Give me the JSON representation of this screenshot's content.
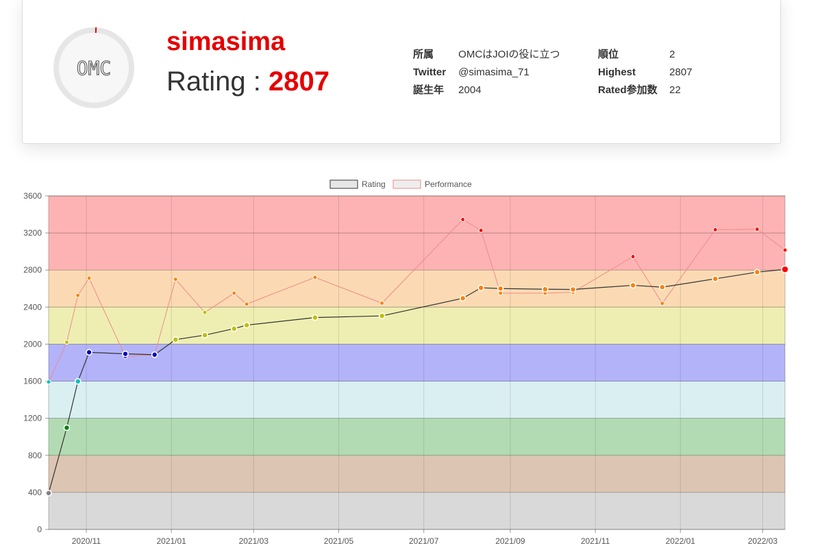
{
  "profile": {
    "avatar_text": "OMC",
    "username": "simasima",
    "rating_label": "Rating :",
    "rating_value": "2807",
    "fields_left": [
      {
        "key": "所属",
        "value": "OMCはJOIの役に立つ",
        "link": false
      },
      {
        "key": "Twitter",
        "value": "@simasima_71",
        "link": true
      },
      {
        "key": "誕生年",
        "value": "2004",
        "link": false
      }
    ],
    "fields_right": [
      {
        "key": "順位",
        "value": "2"
      },
      {
        "key": "Highest",
        "value": "2807"
      },
      {
        "key": "Rated参加数",
        "value": "22"
      }
    ]
  },
  "colors": {
    "accent": "#e50000",
    "link": "#2a9fd6",
    "rating_line": "#333333",
    "performance_line": "#f08a8a"
  },
  "chart_data": {
    "type": "line",
    "legend": [
      "Rating",
      "Performance"
    ],
    "legend_position": "top-center",
    "grid": true,
    "ylim": [
      0,
      3600
    ],
    "yticks": [
      0,
      400,
      800,
      1200,
      1600,
      2000,
      2400,
      2800,
      3200,
      3600
    ],
    "xlim": [
      "2020-10-05",
      "2022-03-17"
    ],
    "xticks": [
      "2020/11",
      "2021/01",
      "2021/03",
      "2021/05",
      "2021/07",
      "2021/09",
      "2021/11",
      "2022/01",
      "2022/03"
    ],
    "bands": [
      {
        "from": 0,
        "to": 400,
        "color": "#d9d9d9"
      },
      {
        "from": 400,
        "to": 800,
        "color": "#dcc5b3"
      },
      {
        "from": 800,
        "to": 1200,
        "color": "#b3dbb3"
      },
      {
        "from": 1200,
        "to": 1600,
        "color": "#daeff2"
      },
      {
        "from": 1600,
        "to": 2000,
        "color": "#b3b3fa"
      },
      {
        "from": 2000,
        "to": 2400,
        "color": "#eeeeb2"
      },
      {
        "from": 2400,
        "to": 2800,
        "color": "#fbdab3"
      },
      {
        "from": 2800,
        "to": 3600,
        "color": "#fdb3b3"
      }
    ],
    "series": [
      {
        "name": "Rating",
        "x": [
          "2020-10-05",
          "2020-10-18",
          "2020-10-26",
          "2020-11-03",
          "2020-11-29",
          "2020-12-20",
          "2021-01-04",
          "2021-01-25",
          "2021-02-15",
          "2021-02-24",
          "2021-04-14",
          "2021-06-01",
          "2021-07-29",
          "2021-08-11",
          "2021-08-25",
          "2021-09-26",
          "2021-10-16",
          "2021-11-28",
          "2021-12-19",
          "2022-01-26",
          "2022-02-25",
          "2022-03-17"
        ],
        "values": [
          392,
          1098,
          1598,
          1912,
          1895,
          1886,
          2049,
          2097,
          2167,
          2205,
          2287,
          2305,
          2495,
          2608,
          2600,
          2593,
          2590,
          2635,
          2615,
          2705,
          2777,
          2807
        ]
      },
      {
        "name": "Performance",
        "x": [
          "2020-10-05",
          "2020-10-18",
          "2020-10-26",
          "2020-11-03",
          "2020-11-29",
          "2020-12-20",
          "2021-01-04",
          "2021-01-25",
          "2021-02-15",
          "2021-02-24",
          "2021-04-14",
          "2021-06-01",
          "2021-07-29",
          "2021-08-11",
          "2021-08-25",
          "2021-09-26",
          "2021-10-16",
          "2021-11-28",
          "2021-12-19",
          "2022-01-26",
          "2022-02-25",
          "2022-03-17"
        ],
        "values": [
          1592,
          2021,
          2526,
          2712,
          1867,
          1886,
          2700,
          2342,
          2550,
          2432,
          2720,
          2442,
          3345,
          3228,
          2550,
          2550,
          2560,
          2945,
          2440,
          3235,
          3240,
          3015
        ]
      }
    ]
  }
}
